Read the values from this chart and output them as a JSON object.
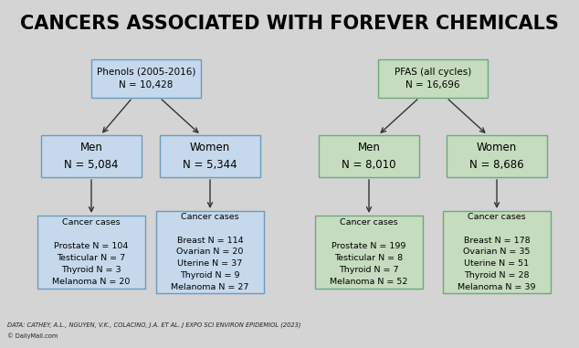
{
  "title": "CANCERS ASSOCIATED WITH FOREVER CHEMICALS",
  "bg_color": "#d4d4d4",
  "footnote": "DATA: CATHEY, A.L., NGUYEN, V.K., COLACINO, J.A. ET AL. J EXPO SCI ENVIRON EPIDEMIOL (2023)",
  "watermark": "© DailyMail.com",
  "phenols_box": {
    "text": "Phenols (2005-2016)\nN = 10,428",
    "color": "#c6d9ec",
    "edge_color": "#6a9bbf"
  },
  "pfas_box": {
    "text": "PFAS (all cycles)\nN = 16,696",
    "color": "#c6dcbe",
    "edge_color": "#6aab7a"
  },
  "phenols_men": {
    "text": "Men\nN = 5,084",
    "color": "#c6d9ec",
    "edge_color": "#6a9bbf"
  },
  "phenols_women": {
    "text": "Women\nN = 5,344",
    "color": "#c6d9ec",
    "edge_color": "#6a9bbf"
  },
  "pfas_men": {
    "text": "Men\nN = 8,010",
    "color": "#c6dcbe",
    "edge_color": "#6aab7a"
  },
  "pfas_women": {
    "text": "Women\nN = 8,686",
    "color": "#c6dcbe",
    "edge_color": "#6aab7a"
  },
  "phenols_men_cancer": {
    "text": "Cancer cases\n\nProstate N = 104\nTesticular N = 7\nThyroid N = 3\nMelanoma N = 20",
    "color": "#c6d9ec",
    "edge_color": "#6a9bbf"
  },
  "phenols_women_cancer": {
    "text": "Cancer cases\n\nBreast N = 114\nOvarian N = 20\nUterine N = 37\nThyroid N = 9\nMelanoma N = 27",
    "color": "#c6d9ec",
    "edge_color": "#6a9bbf"
  },
  "pfas_men_cancer": {
    "text": "Cancer cases\n\nProstate N = 199\nTesticular N = 8\nThyroid N = 7\nMelanoma N = 52",
    "color": "#c6dcbe",
    "edge_color": "#6aab7a"
  },
  "pfas_women_cancer": {
    "text": "Cancer cases\n\nBreast N = 178\nOvarian N = 35\nUterine N = 51\nThyroid N = 28\nMelanoma N = 39",
    "color": "#c6dcbe",
    "edge_color": "#6aab7a"
  }
}
